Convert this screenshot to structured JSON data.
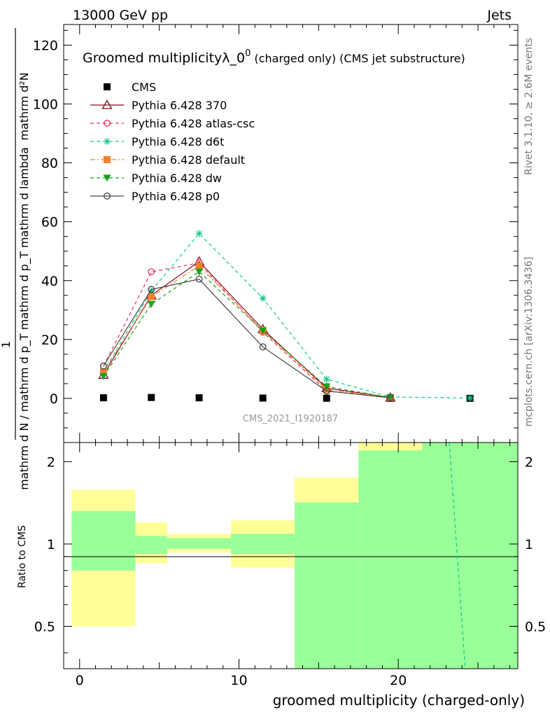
{
  "header": {
    "left": "13000 GeV pp",
    "right": "Jets"
  },
  "side_labels": {
    "rivet": "Rivet 3.1.10, ≥ 2.6M events",
    "mcplots": "mcplots.cern.ch [arXiv:1306.3436]"
  },
  "watermark": "CMS_2021_I1920187",
  "chart_data": [
    {
      "panel": "main",
      "type": "line",
      "title_main": "Groomed multiplicityλ_0",
      "title_sup": "0",
      "title_suffix": " (charged only) (CMS jet substructure)",
      "ylabel_num": "mathrm d²N",
      "ylabel_den": "mathrm d N / mathrm d p_T mathrm d p_T mathrm d lambda",
      "ylabel_one": "1",
      "ylim": [
        -15,
        127
      ],
      "yticks": [
        0,
        20,
        40,
        60,
        80,
        100,
        120
      ],
      "xlim": [
        -1,
        27.5
      ],
      "grid": false,
      "legend_position": "top-left",
      "series": [
        {
          "name": "CMS",
          "color": "#000000",
          "marker": "square-filled",
          "dash": "none",
          "x": [
            1.5,
            4.5,
            7.5,
            11.5,
            15.5,
            19.5,
            24.5
          ],
          "y": [
            0.2,
            0.3,
            0.2,
            0.1,
            0.05,
            0.02,
            0.01
          ]
        },
        {
          "name": "Pythia 6.428 370",
          "color": "#8b0a1e",
          "marker": "triangle-open",
          "dash": "solid",
          "x": [
            1.5,
            4.5,
            7.5,
            11.5,
            15.5,
            19.5
          ],
          "y": [
            8.0,
            35.0,
            46.5,
            23.5,
            3.5,
            0.3
          ]
        },
        {
          "name": "Pythia 6.428 atlas-csc",
          "color": "#ee3355",
          "marker": "circle-open",
          "dash": "dashed",
          "x": [
            1.5,
            4.5,
            7.5,
            11.5,
            15.5,
            19.5
          ],
          "y": [
            11.0,
            43.0,
            46.0,
            22.5,
            2.5,
            0.2
          ]
        },
        {
          "name": "Pythia 6.428 d6t",
          "color": "#10c88e",
          "marker": "star",
          "dash": "dashed",
          "x": [
            1.5,
            4.5,
            7.5,
            11.5,
            15.5,
            19.5,
            24.5
          ],
          "y": [
            9.0,
            36.5,
            56.0,
            34.0,
            6.5,
            0.5,
            0.1
          ]
        },
        {
          "name": "Pythia 6.428 default",
          "color": "#f28030",
          "marker": "square-filled",
          "dash": "dashdot",
          "x": [
            1.5,
            4.5,
            7.5,
            11.5,
            15.5,
            19.5
          ],
          "y": [
            9.0,
            34.5,
            45.0,
            23.0,
            3.0,
            0.3
          ]
        },
        {
          "name": "Pythia 6.428 dw",
          "color": "#17a21c",
          "marker": "triangle-down-filled",
          "dash": "dashed",
          "x": [
            1.5,
            4.5,
            7.5,
            11.5,
            15.5,
            19.5
          ],
          "y": [
            7.5,
            32.0,
            43.0,
            23.0,
            4.0,
            0.3
          ]
        },
        {
          "name": "Pythia 6.428 p0",
          "color": "#444444",
          "marker": "circle-open",
          "dash": "solid",
          "x": [
            1.5,
            4.5,
            7.5,
            11.5,
            15.5,
            19.5
          ],
          "y": [
            11.0,
            37.0,
            40.5,
            17.5,
            2.5,
            0.2
          ]
        }
      ]
    },
    {
      "panel": "ratio",
      "type": "area",
      "ylabel": "Ratio to CMS",
      "xlabel": "groomed multiplicity (charged-only)",
      "yscale": "log",
      "ylim": [
        0.35,
        2.35
      ],
      "yticks": [
        0.5,
        1,
        2
      ],
      "xticks": [
        0,
        10,
        20
      ],
      "xlim": [
        -1,
        27.5
      ],
      "bins": [
        {
          "x0": -0.5,
          "x1": 3.5,
          "green": [
            0.8,
            1.32
          ],
          "yellow": [
            0.5,
            1.58
          ]
        },
        {
          "x0": 3.5,
          "x1": 5.5,
          "green": [
            0.92,
            1.07
          ],
          "yellow": [
            0.85,
            1.2
          ]
        },
        {
          "x0": 5.5,
          "x1": 9.5,
          "green": [
            0.96,
            1.05
          ],
          "yellow": [
            0.93,
            1.09
          ]
        },
        {
          "x0": 9.5,
          "x1": 13.5,
          "green": [
            0.92,
            1.09
          ],
          "yellow": [
            0.82,
            1.22
          ]
        },
        {
          "x0": 13.5,
          "x1": 17.5,
          "green": [
            0.35,
            1.42
          ],
          "yellow": [
            0.35,
            1.75
          ]
        },
        {
          "x0": 17.5,
          "x1": 21.5,
          "green": [
            0.35,
            2.2
          ],
          "yellow": [
            0.35,
            2.35
          ]
        },
        {
          "x0": 21.5,
          "x1": 27.5,
          "green": [
            0.35,
            2.35
          ],
          "yellow": [
            0.35,
            2.35
          ]
        }
      ],
      "series": [
        {
          "name": "Pythia 6.428 d6t",
          "color": "#10c88e",
          "dash": "dashed",
          "x": [
            23.2,
            24.2
          ],
          "y": [
            2.35,
            0.35
          ]
        }
      ]
    }
  ]
}
